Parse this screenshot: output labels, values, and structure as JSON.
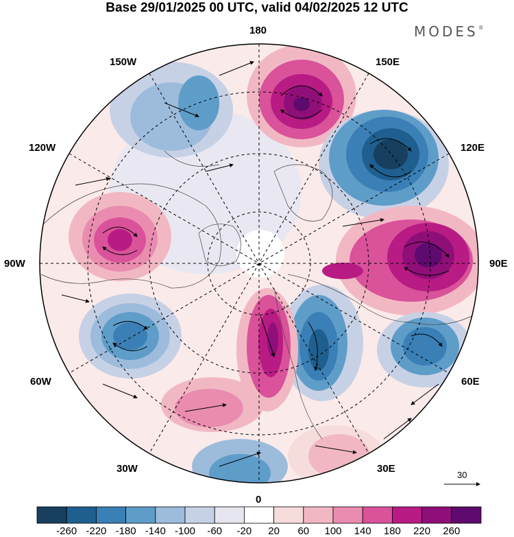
{
  "title": "Base 29/01/2025 00 UTC, valid 04/02/2025 12 UTC",
  "brand": "MODES",
  "brand_mark": "®",
  "lon_labels": {
    "l180": "180",
    "l150w": "150W",
    "l150e": "150E",
    "l120w": "120W",
    "l120e": "120E",
    "l90w": "90W",
    "l90e": "90E",
    "l60w": "60W",
    "l60e": "60E",
    "l30w": "30W",
    "l30e": "30E",
    "l0": "0"
  },
  "reference_vector": "30",
  "colorbar": {
    "ticks": [
      "-260",
      "-220",
      "-180",
      "-140",
      "-100",
      "-60",
      "-20",
      "20",
      "60",
      "100",
      "140",
      "180",
      "220",
      "260"
    ],
    "colors": [
      "#173f5f",
      "#1f5f8f",
      "#3a7fb5",
      "#5f9dc9",
      "#9dbcdc",
      "#c7d1e6",
      "#e6e6f0",
      "#ffffff",
      "#f7dcdc",
      "#f1b8c4",
      "#ea8cb0",
      "#d9529a",
      "#b81b83",
      "#8f0f78",
      "#5e0a6e"
    ]
  },
  "map": {
    "projection": "north-polar-stereographic",
    "background": "#ffffff",
    "meridian_line": "#000000",
    "colors": {
      "pos1": "#f7dcdc",
      "pos2": "#f1b8c4",
      "pos3": "#ea8cb0",
      "pos4": "#d9529a",
      "pos5": "#b81b83",
      "pos6": "#8f0f78",
      "pos7": "#5e0a6e",
      "neg1": "#e6e6f0",
      "neg2": "#c7d1e6",
      "neg3": "#9dbcdc",
      "neg4": "#5f9dc9",
      "neg5": "#3a7fb5",
      "neg6": "#1f5f8f",
      "neg7": "#173f5f"
    }
  }
}
